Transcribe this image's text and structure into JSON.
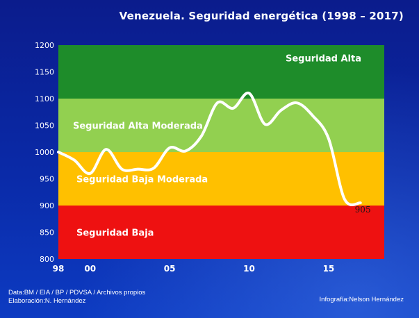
{
  "title": "Venezuela.  Seguridad  energética (1998 – 2017)",
  "footer": {
    "source": "Data:BM / EIA / BP / PDVSA / Archivos propios",
    "author": "Elaboración:N. Hernández",
    "credit": "Infografía:Nelson Hernández"
  },
  "chart_data": {
    "type": "line",
    "title": "Venezuela.  Seguridad  energética (1998 – 2017)",
    "xlabel": "",
    "ylabel": "",
    "xlim": [
      1998,
      2018.5
    ],
    "ylim": [
      800,
      1200
    ],
    "yticks": [
      800,
      850,
      900,
      950,
      1000,
      1050,
      1100,
      1150,
      1200
    ],
    "xticks": [
      {
        "value": 1998,
        "label": "98"
      },
      {
        "value": 2000,
        "label": "00"
      },
      {
        "value": 2005,
        "label": "05"
      },
      {
        "value": 2010,
        "label": "10"
      },
      {
        "value": 2015,
        "label": "15"
      }
    ],
    "bands": [
      {
        "label": "Seguridad Baja",
        "from": 800,
        "to": 900,
        "color": "#ee1111"
      },
      {
        "label": "Seguridad Baja Moderada",
        "from": 900,
        "to": 1000,
        "color": "#ffc000"
      },
      {
        "label": "Seguridad Alta  Moderada",
        "from": 1000,
        "to": 1100,
        "color": "#92d050"
      },
      {
        "label": "Seguridad Alta",
        "from": 1100,
        "to": 1200,
        "color": "#1e8c2a"
      }
    ],
    "line_color": "#ffffff",
    "x": [
      1998,
      1999,
      2000,
      2001,
      2002,
      2003,
      2004,
      2005,
      2006,
      2007,
      2008,
      2009,
      2010,
      2011,
      2012,
      2013,
      2014,
      2015,
      2016,
      2017
    ],
    "values": [
      1000,
      985,
      960,
      1005,
      968,
      968,
      970,
      1008,
      1002,
      1030,
      1092,
      1082,
      1110,
      1052,
      1078,
      1092,
      1068,
      1025,
      912,
      905
    ],
    "end_label": {
      "x": 2017,
      "y": 905,
      "text": "905"
    }
  }
}
